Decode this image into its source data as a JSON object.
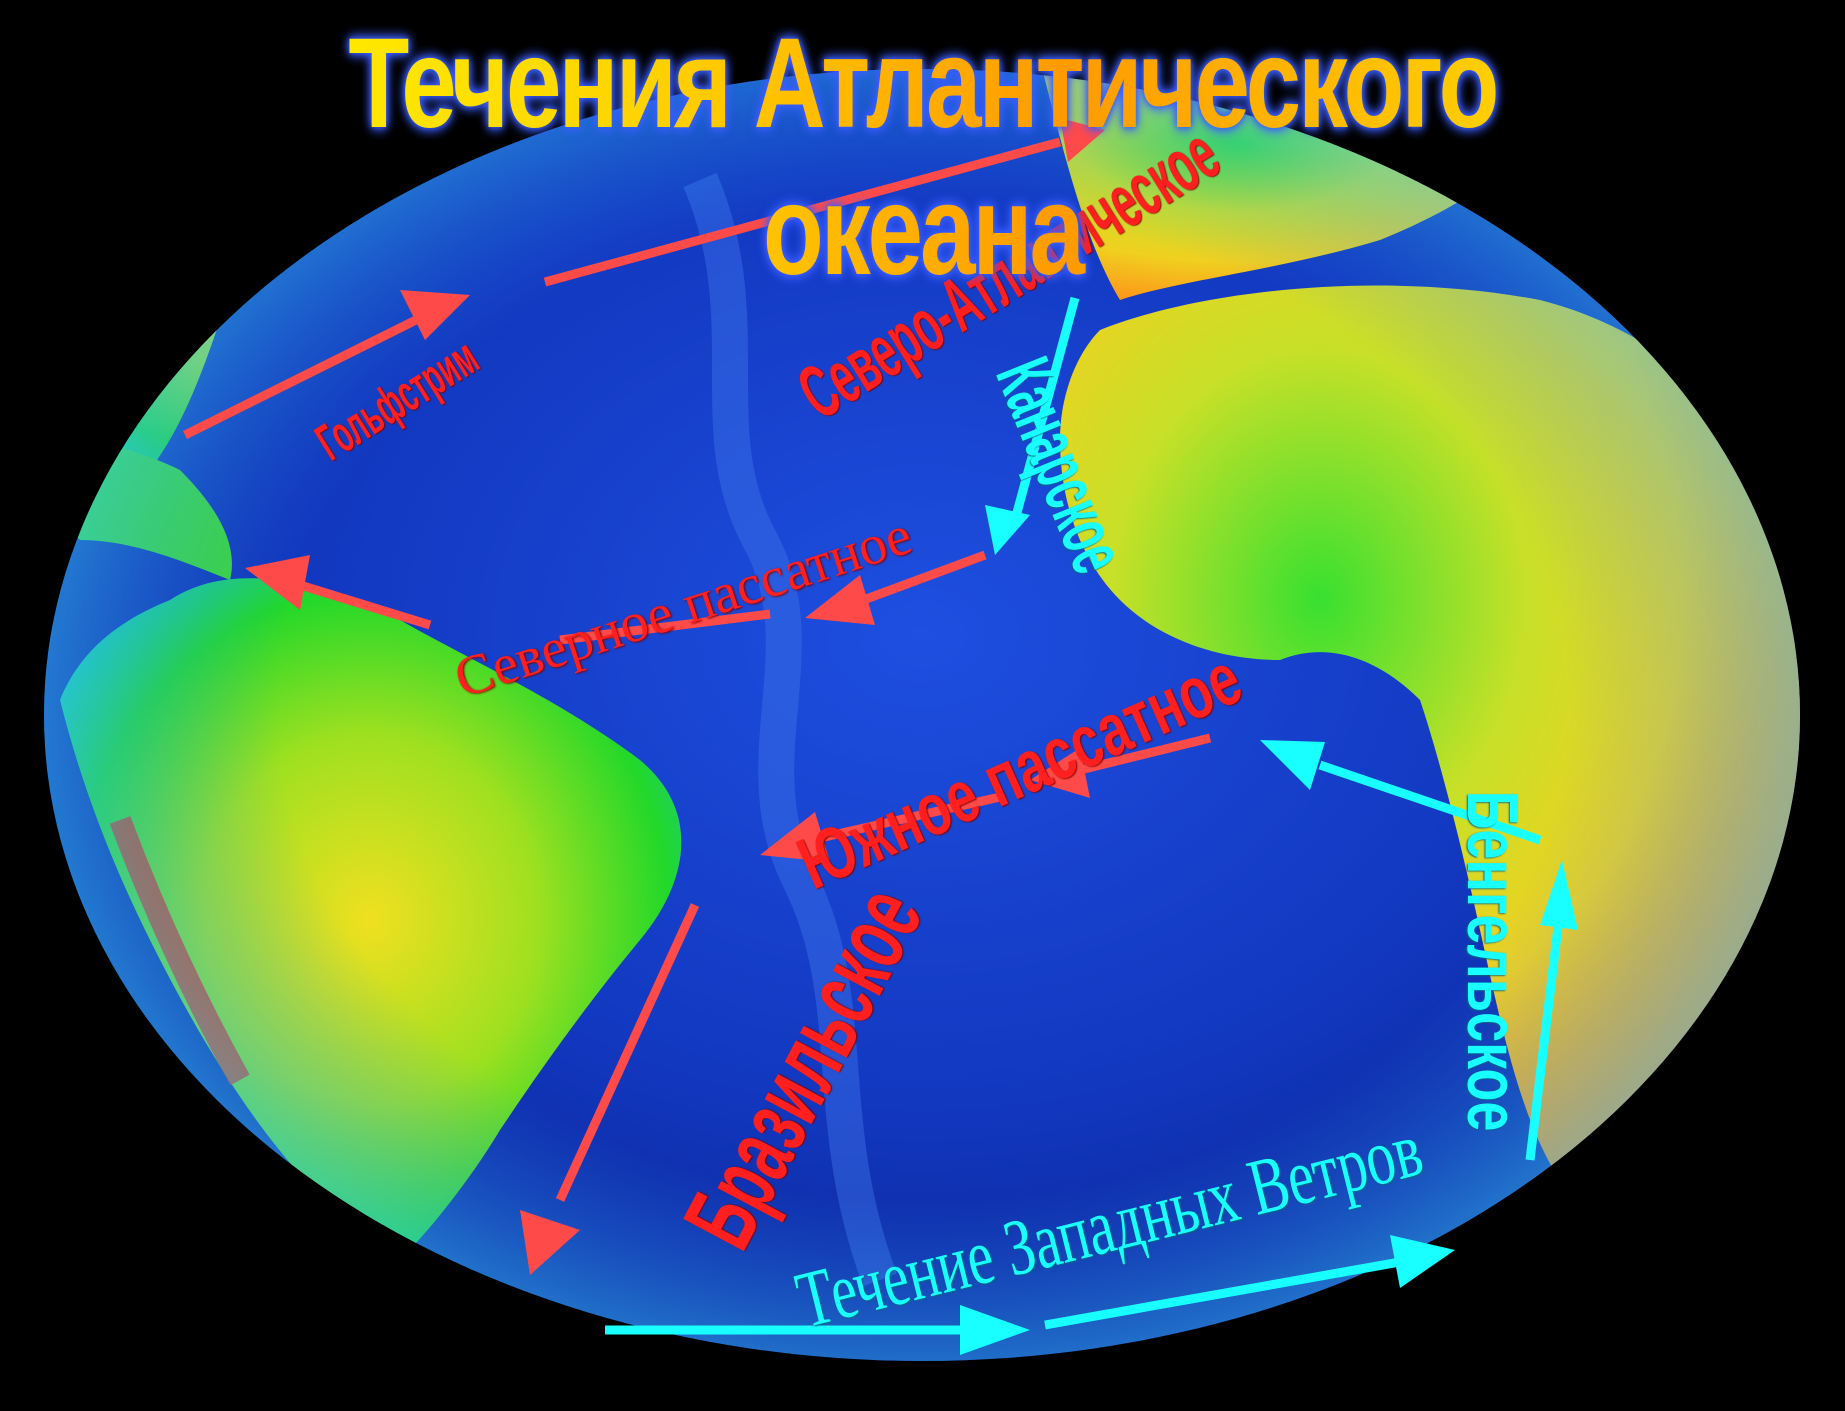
{
  "title": "Течения Атлантического океана",
  "colors": {
    "warm_current": "#ff4a4a",
    "cold_current": "#19ffff",
    "ocean": "#1234c8",
    "land_low": "#22d82a",
    "land_mid": "#e8e020",
    "land_high": "#ff9a18",
    "title": "#ffd400",
    "background": "#000000"
  },
  "legend_types": {
    "warm": "red arrows",
    "cold": "cyan arrows"
  },
  "currents": [
    {
      "id": "gulfstream",
      "label": "Гольфстрим",
      "type": "warm"
    },
    {
      "id": "north-atlantic",
      "label": "Северо-Атлантическое",
      "type": "warm"
    },
    {
      "id": "canary",
      "label": "Канарское",
      "type": "cold"
    },
    {
      "id": "north-trade",
      "label": "Северное пассатное",
      "type": "warm"
    },
    {
      "id": "south-trade",
      "label": "Южное пассатное",
      "type": "warm"
    },
    {
      "id": "brazil",
      "label": "Бразильское",
      "type": "warm"
    },
    {
      "id": "benguela",
      "label": "Бенгельское",
      "type": "cold"
    },
    {
      "id": "west-wind-drift",
      "label": "Течение Западных Ветров",
      "type": "cold"
    }
  ]
}
